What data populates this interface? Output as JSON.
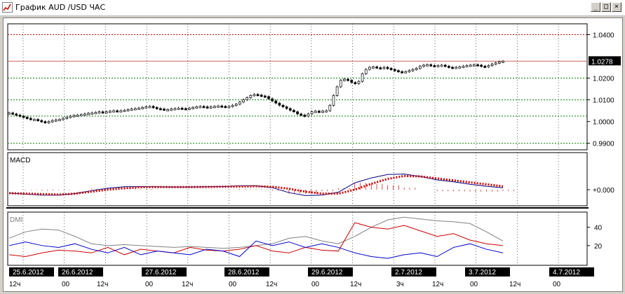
{
  "window": {
    "title": "График AUD /USD  ЧАС",
    "minimize_glyph": "_",
    "maximize_glyph": "□",
    "close_glyph": "×"
  },
  "panes": {
    "macd_label": "MACD",
    "dmi_label": "DMI"
  },
  "chart_data": [
    {
      "type": "candlestick",
      "title": "График AUD /USD  ЧАС",
      "y_ticks": [
        "1.0400",
        "1.0278",
        "1.0200",
        "1.0100",
        "1.0000",
        "0.9900"
      ],
      "current_price": "1.0278",
      "horizontal_lines": [
        {
          "value": 1.04,
          "color": "#cc0000"
        },
        {
          "value": 1.0278,
          "color": "#cc6666"
        },
        {
          "value": 1.02,
          "color": "#008000"
        },
        {
          "value": 1.01,
          "color": "#008000"
        },
        {
          "value": 1.0025,
          "color": "#008000"
        },
        {
          "value": 0.99,
          "color": "#008000"
        }
      ],
      "ylim": [
        0.987,
        1.045
      ],
      "close_values": [
        1.004,
        1.0035,
        1.003,
        1.0025,
        1.002,
        1.0015,
        1.001,
        1.001,
        1.0005,
        1.0,
        0.9995,
        1.0,
        1.0005,
        1.0008,
        1.001,
        1.0015,
        1.002,
        1.0025,
        1.0028,
        1.003,
        1.0032,
        1.0035,
        1.0038,
        1.004,
        1.0042,
        1.0045,
        1.0043,
        1.0045,
        1.0048,
        1.005,
        1.0048,
        1.005,
        1.0052,
        1.0055,
        1.0058,
        1.006,
        1.0062,
        1.0065,
        1.0068,
        1.007,
        1.0065,
        1.006,
        1.0058,
        1.0055,
        1.0055,
        1.0058,
        1.006,
        1.0062,
        1.006,
        1.0058,
        1.0062,
        1.0065,
        1.0068,
        1.007,
        1.0068,
        1.0065,
        1.0068,
        1.007,
        1.0072,
        1.007,
        1.0068,
        1.007,
        1.0075,
        1.008,
        1.009,
        1.01,
        1.011,
        1.012,
        1.0125,
        1.0122,
        1.0118,
        1.0115,
        1.0105,
        1.0095,
        1.0085,
        1.0075,
        1.0068,
        1.006,
        1.0052,
        1.0045,
        1.0035,
        1.003,
        1.0025,
        1.0035,
        1.0045,
        1.0048,
        1.0045,
        1.0048,
        1.005,
        1.0075,
        1.012,
        1.016,
        1.019,
        1.0195,
        1.019,
        1.018,
        1.0175,
        1.0185,
        1.022,
        1.024,
        1.025,
        1.0252,
        1.0248,
        1.0245,
        1.025,
        1.0245,
        1.024,
        1.0235,
        1.023,
        1.0228,
        1.023,
        1.0235,
        1.024,
        1.0245,
        1.0255,
        1.026,
        1.0262,
        1.0258,
        1.0255,
        1.0258,
        1.026,
        1.0255,
        1.025,
        1.0248,
        1.025,
        1.0252,
        1.0255,
        1.0258,
        1.026,
        1.0262,
        1.026,
        1.0255,
        1.0252,
        1.0258,
        1.0265,
        1.027,
        1.0275,
        1.0278
      ]
    },
    {
      "type": "line",
      "title": "MACD",
      "y_ticks": [
        "+0.000"
      ],
      "series": [
        {
          "color": "#000080",
          "values": [
            -0.35,
            -0.45,
            -0.55,
            -0.55,
            -0.4,
            -0.1,
            0.15,
            0.3,
            0.32,
            0.3,
            0.28,
            0.28,
            0.3,
            0.32,
            0.4,
            0.4,
            0.2,
            -0.3,
            -0.6,
            -0.55,
            -0.25,
            0.7,
            1.2,
            1.55,
            1.6,
            1.35,
            1.0,
            0.8,
            0.55,
            0.35,
            0.2
          ]
        },
        {
          "color": "#cc0000",
          "values": [
            -0.35,
            -0.4,
            -0.45,
            -0.5,
            -0.4,
            -0.2,
            0.0,
            0.15,
            0.25,
            0.27,
            0.27,
            0.27,
            0.28,
            0.3,
            0.32,
            0.35,
            0.3,
            0.1,
            -0.2,
            -0.4,
            -0.4,
            0.0,
            0.6,
            1.1,
            1.4,
            1.35,
            1.15,
            0.95,
            0.75,
            0.55,
            0.35
          ]
        },
        {
          "color": "#cc0000",
          "values": [
            0.0,
            -0.05,
            -0.1,
            -0.05,
            0.0,
            0.1,
            0.15,
            0.15,
            0.07,
            0.03,
            0.01,
            0.01,
            0.02,
            0.02,
            0.08,
            0.05,
            -0.1,
            -0.4,
            -0.4,
            -0.15,
            0.15,
            0.7,
            0.6,
            0.45,
            0.2,
            0.0,
            -0.15,
            -0.15,
            -0.2,
            -0.2,
            -0.15
          ]
        }
      ],
      "zero_line": true
    },
    {
      "type": "line",
      "title": "DMI",
      "y_ticks": [
        "40",
        "20"
      ],
      "ylim": [
        0,
        55
      ],
      "series": [
        {
          "color": "#808080",
          "values": [
            28,
            35,
            38,
            37,
            30,
            22,
            20,
            21,
            20,
            19,
            18,
            19,
            18,
            17,
            18,
            20,
            22,
            28,
            30,
            25,
            22,
            30,
            40,
            48,
            51,
            49,
            47,
            46,
            44,
            35,
            25
          ]
        },
        {
          "color": "#cc0000",
          "values": [
            10,
            8,
            12,
            15,
            14,
            12,
            18,
            10,
            16,
            14,
            12,
            18,
            15,
            14,
            16,
            20,
            14,
            12,
            18,
            15,
            14,
            45,
            40,
            38,
            42,
            36,
            30,
            33,
            26,
            22,
            20
          ]
        },
        {
          "color": "#0000cc",
          "values": [
            20,
            24,
            20,
            18,
            22,
            16,
            12,
            18,
            10,
            14,
            12,
            10,
            16,
            14,
            8,
            25,
            20,
            24,
            18,
            22,
            18,
            12,
            8,
            6,
            10,
            12,
            8,
            18,
            22,
            16,
            12
          ]
        }
      ]
    }
  ],
  "x_axis": {
    "dates": [
      "25.6.2012",
      "26.6.2012",
      "27.6.2012",
      "28.6.2012",
      "29.6.2012",
      "2.7.2012",
      "3.7.2012",
      "4.7.2012"
    ],
    "hour_labels": [
      "12ч",
      "00",
      "12ч",
      "00",
      "12ч",
      "00",
      "12ч",
      "00",
      "12ч",
      "3ч",
      "12ч",
      "00",
      "12ч",
      "00"
    ]
  }
}
